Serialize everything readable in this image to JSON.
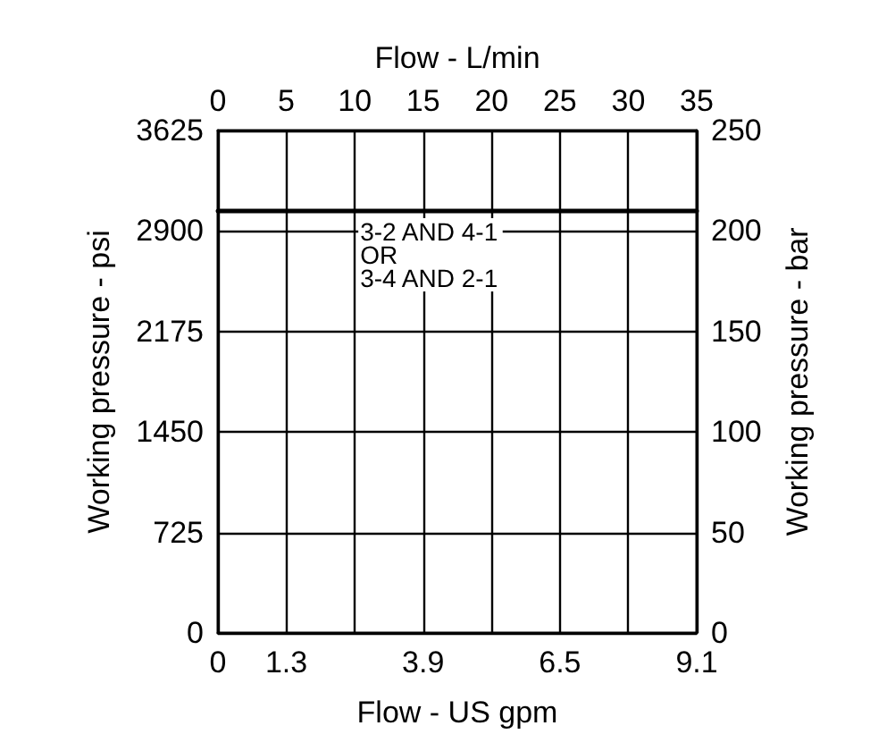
{
  "chart_data": {
    "type": "line",
    "xlabel": "Flow - US gpm",
    "x2label": "Flow - L/min",
    "ylabel": "Working pressure - psi",
    "y2label": "Working pressure - bar",
    "series": [
      {
        "color": "#000000",
        "axis": "y2",
        "x": [
          0,
          9.1
        ],
        "values": [
          210,
          210
        ]
      }
    ],
    "xlim": [
      0,
      9.1
    ],
    "xticks": [
      0,
      1.3,
      {
        "value": 2.6,
        "label": null
      },
      3.9,
      {
        "value": 5.2,
        "label": null
      },
      6.5,
      {
        "value": 7.8,
        "label": null
      },
      9.1
    ],
    "x2lim": [
      0,
      35
    ],
    "x2ticks": [
      0,
      5,
      10,
      15,
      20,
      25,
      30,
      35
    ],
    "ylim": [
      0,
      3625
    ],
    "yticks": [
      0,
      725,
      1450,
      2175,
      2900,
      3625
    ],
    "y2lim": [
      0,
      250
    ],
    "y2ticks": [
      0,
      50,
      100,
      150,
      200,
      250
    ],
    "annotations": [
      "3-2 AND 4-1\nOR\n3-4 AND 2-1"
    ],
    "grid": true,
    "marker": "none",
    "line_style": "solid"
  }
}
